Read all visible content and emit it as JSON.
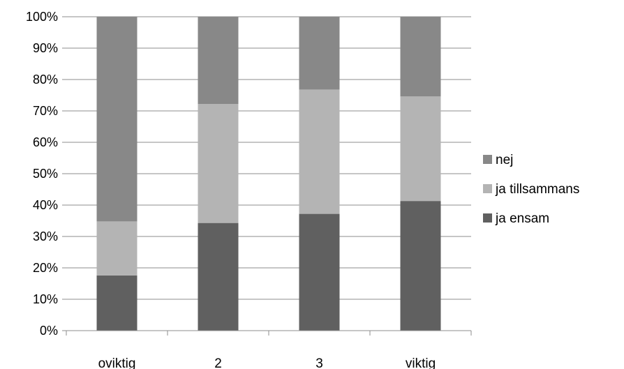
{
  "chart_data": {
    "type": "bar",
    "stacked": true,
    "percent": true,
    "categories": [
      "oviktig",
      "2",
      "3",
      "viktig"
    ],
    "series": [
      {
        "name": "ja ensam",
        "color": "#606060",
        "values": [
          17.6,
          34.3,
          37.2,
          41.3
        ]
      },
      {
        "name": "ja tillsammans",
        "color": "#b4b4b4",
        "values": [
          17.2,
          37.9,
          39.6,
          33.3
        ]
      },
      {
        "name": "nej",
        "color": "#888888",
        "values": [
          65.2,
          27.8,
          23.2,
          25.4
        ]
      }
    ],
    "ylim": [
      0,
      100
    ],
    "yticks": [
      "0%",
      "10%",
      "20%",
      "30%",
      "40%",
      "50%",
      "60%",
      "70%",
      "80%",
      "90%",
      "100%"
    ],
    "grid": true,
    "legend": "right",
    "legend_order": [
      "nej",
      "ja tillsammans",
      "ja ensam"
    ],
    "title": "",
    "xlabel": "",
    "ylabel": ""
  }
}
